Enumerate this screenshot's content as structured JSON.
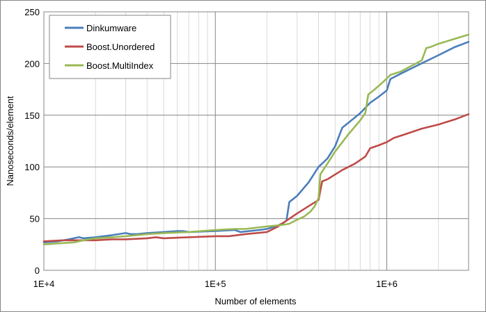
{
  "chart_data": {
    "type": "line",
    "title": "",
    "xlabel": "Number of elements",
    "ylabel": "Nanoseconds/element",
    "xscale": "log",
    "xlim": [
      10000,
      3000000
    ],
    "ylim": [
      0,
      250
    ],
    "x_ticks": [
      {
        "value": 10000,
        "label": "1E+4"
      },
      {
        "value": 100000,
        "label": "1E+5"
      },
      {
        "value": 1000000,
        "label": "1E+6"
      }
    ],
    "y_ticks": [
      {
        "value": 0,
        "label": "0"
      },
      {
        "value": 50,
        "label": "50"
      },
      {
        "value": 100,
        "label": "100"
      },
      {
        "value": 150,
        "label": "150"
      },
      {
        "value": 200,
        "label": "200"
      },
      {
        "value": 250,
        "label": "250"
      }
    ],
    "grid": {
      "major_y": true,
      "major_x": true,
      "minor_x": true
    },
    "legend": {
      "position": "top-left"
    },
    "series": [
      {
        "name": "Dinkumware",
        "color": "#4a7ebb",
        "points": [
          [
            10000,
            27
          ],
          [
            12000,
            28
          ],
          [
            14000,
            30
          ],
          [
            16000,
            32
          ],
          [
            17000,
            31
          ],
          [
            20000,
            32
          ],
          [
            25000,
            34
          ],
          [
            30000,
            36
          ],
          [
            32000,
            35
          ],
          [
            35000,
            35
          ],
          [
            40000,
            36
          ],
          [
            50000,
            37
          ],
          [
            60000,
            38
          ],
          [
            65000,
            38
          ],
          [
            70000,
            37
          ],
          [
            100000,
            38
          ],
          [
            130000,
            39
          ],
          [
            140000,
            37
          ],
          [
            180000,
            39
          ],
          [
            200000,
            40
          ],
          [
            230000,
            43
          ],
          [
            250000,
            46
          ],
          [
            260000,
            48
          ],
          [
            270000,
            66
          ],
          [
            300000,
            72
          ],
          [
            350000,
            85
          ],
          [
            400000,
            100
          ],
          [
            450000,
            108
          ],
          [
            500000,
            120
          ],
          [
            550000,
            138
          ],
          [
            600000,
            143
          ],
          [
            700000,
            152
          ],
          [
            800000,
            162
          ],
          [
            900000,
            168
          ],
          [
            1000000,
            174
          ],
          [
            1050000,
            185
          ],
          [
            1200000,
            190
          ],
          [
            1500000,
            198
          ],
          [
            2000000,
            208
          ],
          [
            2500000,
            216
          ],
          [
            3000000,
            221
          ]
        ]
      },
      {
        "name": "Boost.Unordered",
        "color": "#be4b48",
        "points": [
          [
            10000,
            28
          ],
          [
            13000,
            29
          ],
          [
            17000,
            29
          ],
          [
            20000,
            29
          ],
          [
            25000,
            30
          ],
          [
            30000,
            30
          ],
          [
            40000,
            31
          ],
          [
            45000,
            32
          ],
          [
            50000,
            31
          ],
          [
            70000,
            32
          ],
          [
            100000,
            33
          ],
          [
            120000,
            33
          ],
          [
            150000,
            35
          ],
          [
            200000,
            37
          ],
          [
            230000,
            42
          ],
          [
            260000,
            48
          ],
          [
            300000,
            55
          ],
          [
            350000,
            62
          ],
          [
            400000,
            68
          ],
          [
            420000,
            86
          ],
          [
            450000,
            88
          ],
          [
            550000,
            97
          ],
          [
            650000,
            103
          ],
          [
            750000,
            110
          ],
          [
            800000,
            118
          ],
          [
            900000,
            121
          ],
          [
            1000000,
            124
          ],
          [
            1100000,
            128
          ],
          [
            1300000,
            132
          ],
          [
            1600000,
            137
          ],
          [
            2000000,
            141
          ],
          [
            2500000,
            146
          ],
          [
            3000000,
            151
          ]
        ]
      },
      {
        "name": "Boost.MultiIndex",
        "color": "#98b954",
        "points": [
          [
            10000,
            25
          ],
          [
            12000,
            26
          ],
          [
            15000,
            27
          ],
          [
            17000,
            29
          ],
          [
            20000,
            31
          ],
          [
            25000,
            32
          ],
          [
            30000,
            33
          ],
          [
            40000,
            35
          ],
          [
            50000,
            36
          ],
          [
            70000,
            37
          ],
          [
            100000,
            39
          ],
          [
            130000,
            40
          ],
          [
            150000,
            40
          ],
          [
            190000,
            42
          ],
          [
            250000,
            44
          ],
          [
            270000,
            45
          ],
          [
            300000,
            49
          ],
          [
            330000,
            52
          ],
          [
            360000,
            57
          ],
          [
            380000,
            62
          ],
          [
            400000,
            70
          ],
          [
            410000,
            93
          ],
          [
            450000,
            103
          ],
          [
            500000,
            115
          ],
          [
            600000,
            132
          ],
          [
            700000,
            145
          ],
          [
            750000,
            152
          ],
          [
            780000,
            170
          ],
          [
            850000,
            175
          ],
          [
            950000,
            182
          ],
          [
            1050000,
            189
          ],
          [
            1200000,
            192
          ],
          [
            1400000,
            198
          ],
          [
            1600000,
            203
          ],
          [
            1700000,
            215
          ],
          [
            1800000,
            216
          ],
          [
            2000000,
            219
          ],
          [
            2500000,
            224
          ],
          [
            3000000,
            228
          ]
        ]
      }
    ]
  }
}
